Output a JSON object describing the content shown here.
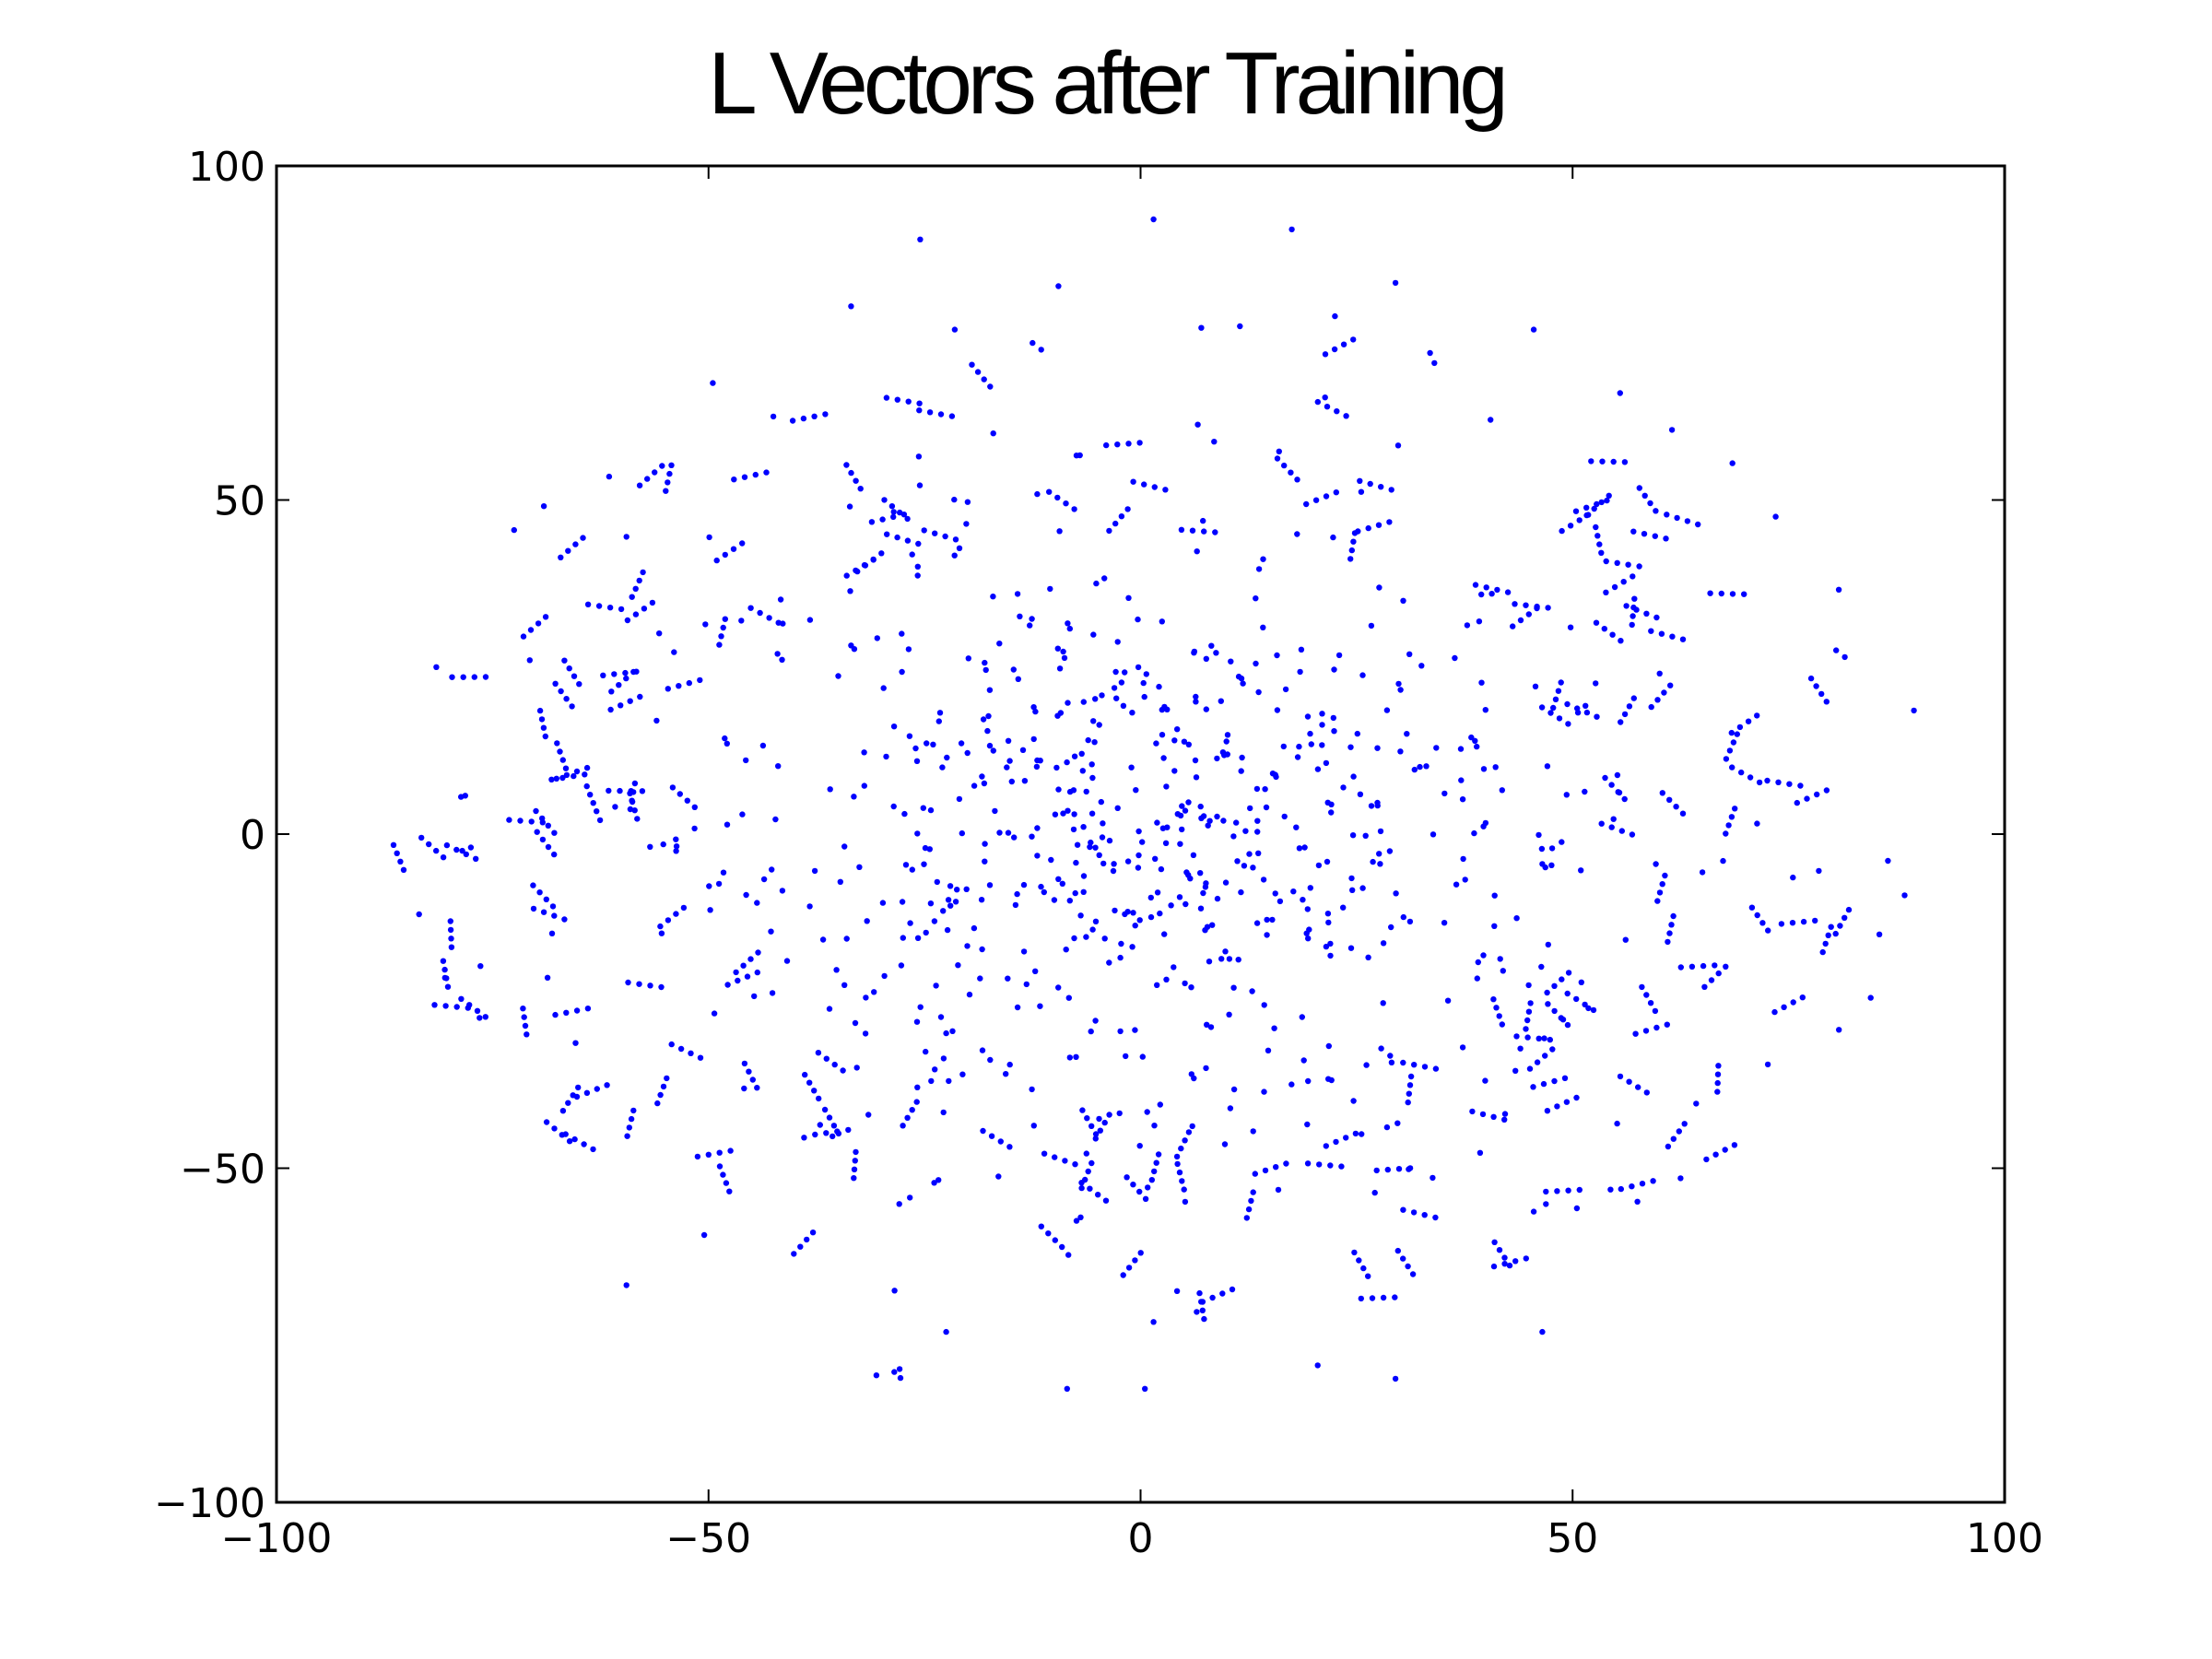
{
  "chart_data": {
    "type": "scatter",
    "title": "L Vectors after Training",
    "xlabel": "",
    "ylabel": "",
    "xlim": [
      -100,
      100
    ],
    "ylim": [
      -100,
      100
    ],
    "x_ticks": [
      -100,
      -50,
      0,
      50,
      100
    ],
    "y_ticks": [
      -100,
      -50,
      0,
      50,
      100
    ],
    "x_tick_labels": [
      "−100",
      "−50",
      "0",
      "50",
      "100"
    ],
    "y_tick_labels": [
      "−100",
      "−50",
      "0",
      "50",
      "100"
    ],
    "grid": false,
    "legend": "none",
    "marker_color": "#0000ff",
    "approx_point_count": 1600,
    "series": [
      {
        "x": [
          1.5,
          17.5,
          -25.5,
          29.5,
          -33.5,
          -9.5,
          22.5,
          -12.5,
          -11.5,
          33.5,
          34.0,
          11.5,
          -21.5,
          45.5,
          40.5,
          -49.5,
          -42.5,
          55.5,
          61.5,
          -59.5,
          -61.5,
          68.5,
          -72.5,
          73.5,
          -81.5,
          80.5,
          81.5,
          89.5,
          -83.5,
          86.5,
          -78.5,
          -77.5,
          75.5,
          78.5,
          85.5,
          -76.5,
          -80.5,
          84.5,
          -8.5,
          0.5,
          29.5,
          -28.5,
          -22.5,
          6.5,
          20.5,
          1.5,
          46.5,
          -59.5,
          -31.5,
          57.5,
          45.5,
          -50.5,
          62.5,
          50.5
        ],
        "y": [
          92.0,
          90.5,
          89.0,
          82.5,
          79.0,
          82.0,
          77.5,
          73.5,
          72.5,
          72.0,
          70.5,
          76.0,
          75.5,
          75.5,
          62.0,
          67.5,
          62.5,
          66.0,
          60.5,
          44.5,
          53.5,
          55.5,
          45.5,
          47.5,
          25.0,
          27.5,
          26.5,
          18.5,
          -12.0,
          -4.0,
          -2.5,
          -2.0,
          -6.5,
          -5.5,
          -15.0,
          -27.5,
          -21.5,
          -24.5,
          -83.0,
          -83.0,
          -81.5,
          -80.5,
          -74.5,
          -71.5,
          -79.5,
          -73.0,
          -74.5,
          -67.5,
          -42.0,
          -55.0,
          -56.5,
          -60.0,
          -51.5,
          -56.0
        ]
      }
    ]
  }
}
